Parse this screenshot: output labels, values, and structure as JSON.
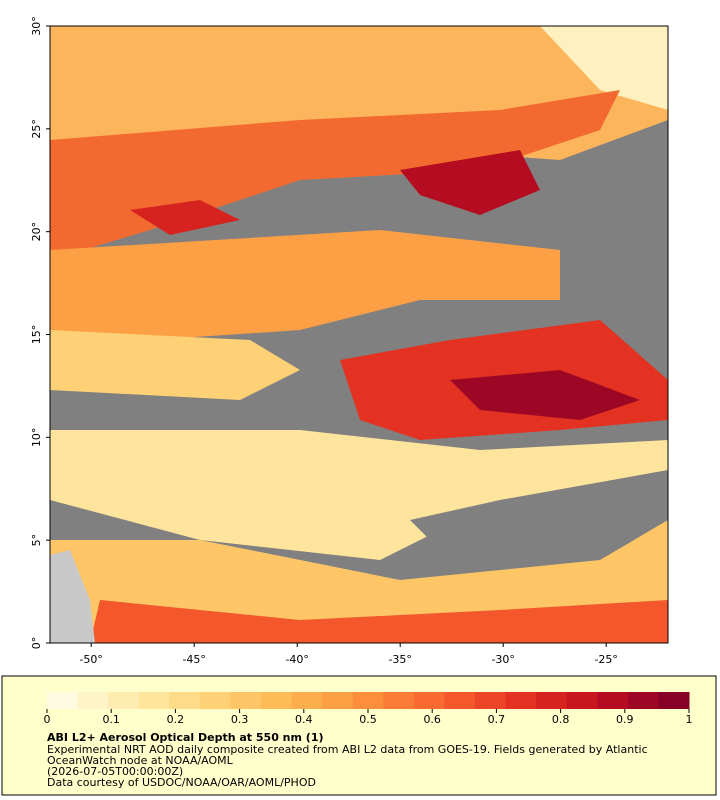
{
  "map": {
    "xlim": [
      -52,
      -22
    ],
    "ylim": [
      0,
      30
    ],
    "xticks": [
      {
        "value": -50,
        "label": "-50°"
      },
      {
        "value": -45,
        "label": "-45°"
      },
      {
        "value": -40,
        "label": "-40°"
      },
      {
        "value": -35,
        "label": "-35°"
      },
      {
        "value": -30,
        "label": "-30°"
      },
      {
        "value": -25,
        "label": "-25°"
      }
    ],
    "yticks": [
      {
        "value": 0,
        "label": "0°"
      },
      {
        "value": 5,
        "label": "5°"
      },
      {
        "value": 10,
        "label": "10°"
      },
      {
        "value": 15,
        "label": "15°"
      },
      {
        "value": 20,
        "label": "20°"
      },
      {
        "value": 25,
        "label": "25°"
      },
      {
        "value": 30,
        "label": "30°"
      }
    ]
  },
  "colorbar": {
    "lim": [
      0,
      1
    ],
    "ticks": [
      0,
      0.1,
      0.2,
      0.3,
      0.4,
      0.5,
      0.6,
      0.7,
      0.8,
      0.9,
      1
    ],
    "colors": [
      "#fffbe0",
      "#fff4c8",
      "#ffecb0",
      "#ffe49c",
      "#fedb88",
      "#fed176",
      "#fec666",
      "#febb58",
      "#fdae4c",
      "#fd9f44",
      "#fc8e3c",
      "#fb7c36",
      "#f86a30",
      "#f3572b",
      "#ec4426",
      "#e33222",
      "#d7231f",
      "#c8161f",
      "#b50c22",
      "#9e0626",
      "#860027"
    ]
  },
  "caption": {
    "title": "ABI L2+ Aerosol Optical Depth at 550 nm (1)",
    "lines": [
      "Experimental NRT AOD daily composite created from ABI L2 data from GOES-19. Fields generated by Atlantic",
      "OceanWatch node at NOAA/AOML",
      "(2026-07-05T00:00:00Z)",
      "Data courtesy of USDOC/NOAA/OAR/AOML/PHOD"
    ]
  }
}
